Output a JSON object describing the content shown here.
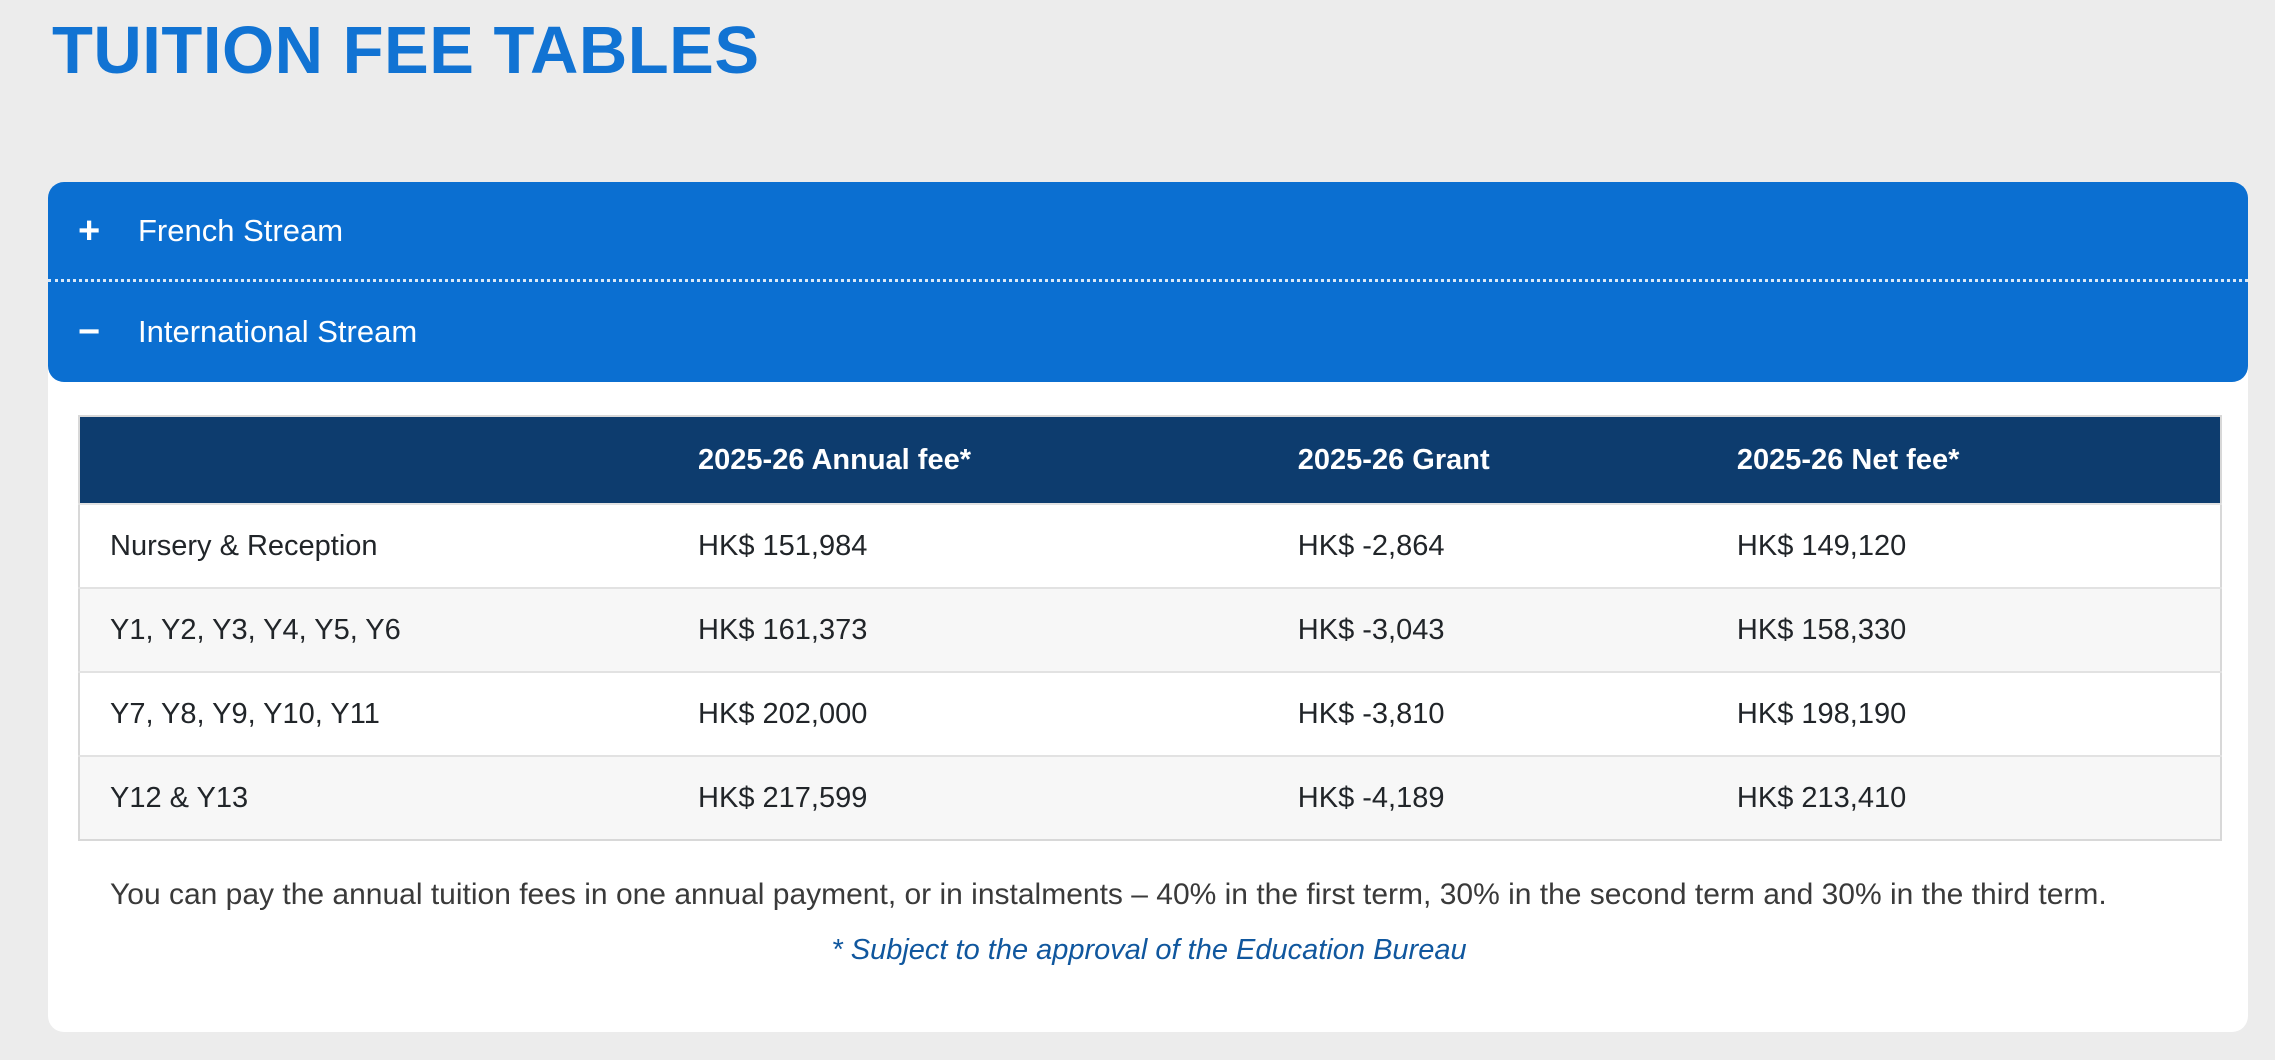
{
  "page": {
    "title": "TUITION FEE TABLES"
  },
  "colors": {
    "page_background": "#ececec",
    "title_blue": "#1173d3",
    "accordion_blue": "#0b6fd1",
    "table_header_navy": "#0d3c6e",
    "alt_row_gray": "#f7f7f7",
    "footnote_blue": "#10579e"
  },
  "accordion": {
    "items": [
      {
        "label": "French Stream",
        "icon": "+",
        "state": "collapsed"
      },
      {
        "label": "International Stream",
        "icon": "−",
        "state": "expanded"
      }
    ]
  },
  "table": {
    "columns": [
      "",
      "2025-26 Annual fee*",
      "2025-26 Grant",
      "2025-26 Net fee*"
    ],
    "rows": [
      {
        "cells": [
          "Nursery & Reception",
          "HK$ 151,984",
          "HK$ -2,864",
          "HK$ 149,120"
        ]
      },
      {
        "cells": [
          "Y1, Y2, Y3, Y4, Y5, Y6",
          "HK$ 161,373",
          "HK$ -3,043",
          "HK$ 158,330"
        ]
      },
      {
        "cells": [
          "Y7, Y8, Y9, Y10, Y11",
          "HK$ 202,000",
          "HK$ -3,810",
          "HK$ 198,190"
        ]
      },
      {
        "cells": [
          "Y12 & Y13",
          "HK$ 217,599",
          "HK$ -4,189",
          "HK$ 213,410"
        ]
      }
    ]
  },
  "notes": {
    "payment_text": "You can pay the annual tuition fees in one annual payment, or in instalments – 40% in the first term, 30% in the second term and 30% in the third term.",
    "footnote": "* Subject to the approval of the Education Bureau"
  }
}
